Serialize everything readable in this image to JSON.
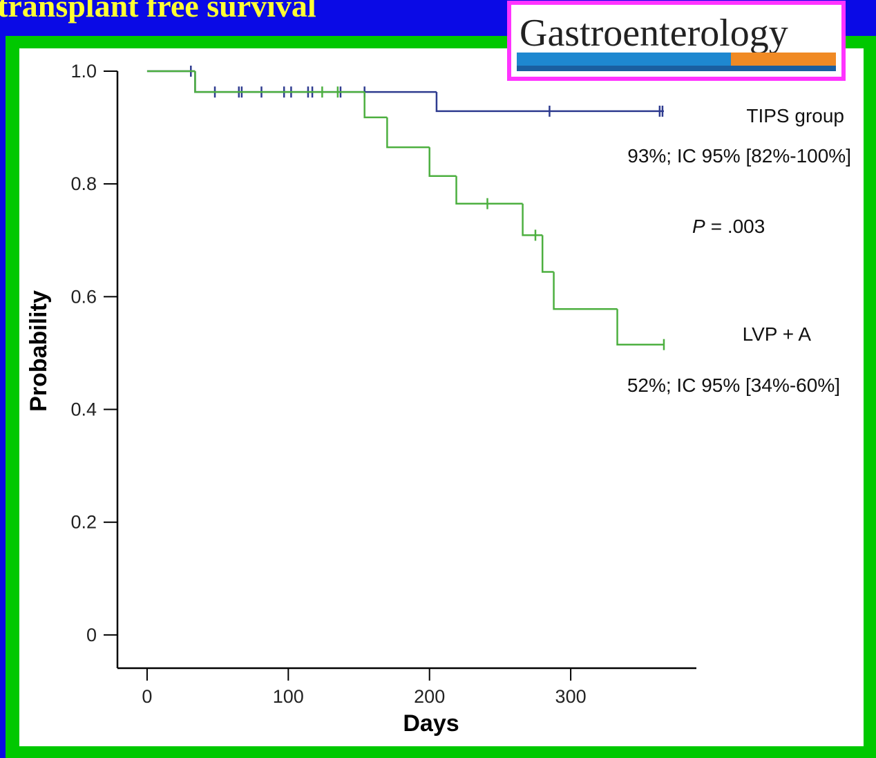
{
  "slide_title": "transplant free survival",
  "logo": "Gastroenterology",
  "chart_data": {
    "type": "step",
    "x_label": "Days",
    "y_label": "Probability",
    "xlim": [
      -21,
      389
    ],
    "ylim": [
      -0.059,
      1.0
    ],
    "xticks": [
      0,
      100,
      200,
      300
    ],
    "yticks": [
      0,
      0.2,
      0.4,
      0.6,
      0.8,
      {
        "value": 1.0,
        "label": "1.0"
      }
    ],
    "series": [
      {
        "name": "TIPS group",
        "color": "#2e3b8f",
        "x": [
          0,
          34,
          205,
          366
        ],
        "values": [
          1.0,
          0.963,
          0.929,
          0.929
        ],
        "censored": [
          31,
          48,
          65,
          67,
          81,
          97,
          102,
          114,
          117,
          137,
          154,
          285,
          363,
          365
        ],
        "estimate": "93%; IC 95% [82%-100%]"
      },
      {
        "name": "LVP + A",
        "color": "#4caf3f",
        "x": [
          0,
          34,
          154,
          170,
          200,
          219,
          266,
          280,
          288,
          333,
          366
        ],
        "values": [
          1.0,
          0.963,
          0.918,
          0.865,
          0.814,
          0.765,
          0.709,
          0.644,
          0.578,
          0.515,
          0.515
        ],
        "censored": [
          124,
          135,
          241,
          275,
          366
        ],
        "estimate": "52%; IC 95% [34%-60%]"
      }
    ],
    "p_value": {
      "symbol": "P",
      "text": "= .003"
    }
  }
}
